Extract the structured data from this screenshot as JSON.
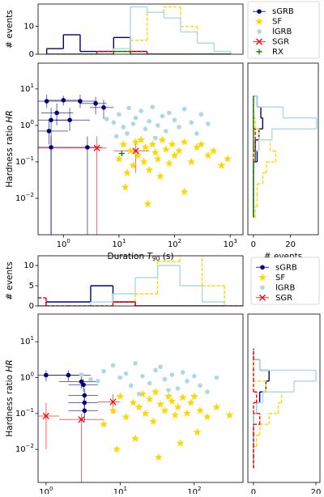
{
  "chart_data": [
    {
      "type": "histogram",
      "orientation": "vertical",
      "xscale": "log",
      "xlim": [
        0.35,
        1700
      ],
      "ylim": [
        0,
        18
      ],
      "yticks": [
        0,
        10
      ],
      "ylabel": "# events",
      "bins": [
        0.5,
        1,
        2,
        4,
        8,
        16,
        32,
        64,
        128,
        256,
        512,
        1024
      ],
      "series": [
        {
          "color": "#000080",
          "values": [
            2,
            7,
            1,
            1,
            6,
            1,
            0,
            0,
            0,
            0,
            0
          ]
        },
        {
          "color": "#ffd700",
          "linestyle": "dashed",
          "values": [
            0,
            0,
            0,
            0,
            1,
            5,
            15,
            17,
            10,
            4,
            1
          ]
        },
        {
          "color": "#add8e6",
          "values": [
            0,
            0,
            0,
            0,
            2,
            17,
            15,
            13,
            8,
            4,
            1
          ]
        },
        {
          "color": "#ff0000",
          "linestyle": "dashed",
          "values": [
            0,
            0,
            0,
            1,
            1,
            1,
            0,
            0,
            0,
            0,
            0
          ]
        },
        {
          "color": "#008000",
          "values": [
            0,
            0,
            0,
            0,
            1,
            0,
            0,
            0,
            0,
            0,
            0
          ]
        }
      ]
    },
    {
      "type": "scatter",
      "xscale": "log",
      "yscale": "log",
      "xlim": [
        0.35,
        1700
      ],
      "ylim": [
        0.001,
        51
      ],
      "legend": true,
      "xlabel": [
        "Duration ",
        "T",
        "90",
        " (s)"
      ],
      "ylabel": [
        "Hardness ratio ",
        "HR"
      ],
      "xticks": [
        {
          "value": 1,
          "label": "10",
          "exp": "0"
        },
        {
          "value": 10,
          "label": "10",
          "exp": "1"
        },
        {
          "value": 100,
          "label": "10",
          "exp": "2"
        },
        {
          "value": 1000,
          "label": "10",
          "exp": "3"
        }
      ],
      "yticks": [
        {
          "value": 0.01,
          "label": "10",
          "exp": "−2"
        },
        {
          "value": 0.1,
          "label": "10",
          "exp": "−1"
        },
        {
          "value": 1,
          "label": "10",
          "exp": "0"
        },
        {
          "value": 10,
          "label": "10",
          "exp": "1"
        }
      ],
      "series": [
        {
          "name": "sGRB",
          "color": "#000080",
          "marker": "o",
          "x": [
            0.5,
            1,
            2,
            3.8,
            5.3,
            0.6,
            1.3,
            0.55,
            0.6,
            2.7,
            0.76
          ],
          "y": [
            4.6,
            4.9,
            4.6,
            4,
            3.1,
            1.4,
            1.4,
            0.7,
            0.25,
            0.25,
            2.2
          ],
          "x_lo": [
            0.35,
            0.5,
            1,
            2,
            3,
            0.35,
            0.7,
            0.35,
            0.35,
            1.5,
            0.4
          ],
          "x_hi": [
            1,
            2,
            4,
            6,
            8,
            1.2,
            3,
            1.2,
            1.5,
            5,
            1.5
          ],
          "y_lo": [
            3,
            3.5,
            3,
            2,
            1.5,
            0.001,
            0.7,
            0.3,
            0.001,
            0.001,
            1
          ],
          "y_hi": [
            7,
            6.5,
            7,
            6,
            5,
            3,
            3,
            1.5,
            0.5,
            0.5,
            4
          ]
        },
        {
          "name": "SF",
          "color": "#ffd700",
          "marker": "*",
          "x": [
            10,
            12,
            14,
            16,
            18,
            20,
            22,
            25,
            28,
            30,
            35,
            40,
            45,
            50,
            60,
            70,
            80,
            90,
            100,
            120,
            150,
            200,
            250,
            300,
            400,
            500,
            700,
            900,
            13,
            33,
            55,
            150
          ],
          "y": [
            0.12,
            0.3,
            0.05,
            0.2,
            0.08,
            0.35,
            0.15,
            0.4,
            0.1,
            0.25,
            0.06,
            0.3,
            0.18,
            0.12,
            0.4,
            0.22,
            0.09,
            0.3,
            0.15,
            0.2,
            0.35,
            0.1,
            0.25,
            0.3,
            0.15,
            0.2,
            0.08,
            0.12,
            0.02,
            0.007,
            0.04,
            0.015
          ]
        },
        {
          "name": "lGRB",
          "color": "#add8e6",
          "marker": "o",
          "x": [
            6,
            8,
            10,
            12,
            15,
            18,
            20,
            25,
            30,
            35,
            40,
            50,
            60,
            70,
            80,
            100,
            120,
            150,
            200,
            250,
            300,
            400,
            9,
            14,
            45
          ],
          "y": [
            1.5,
            1.2,
            2,
            0.9,
            3,
            1.1,
            1.6,
            2.5,
            0.8,
            1.3,
            3.2,
            1,
            1.8,
            0.7,
            2.2,
            1.4,
            0.9,
            2.8,
            1.2,
            0.6,
            2,
            1.1,
            0.5,
            0.6,
            0.45
          ]
        },
        {
          "name": "SGR",
          "color": "#ff0000",
          "marker": "x",
          "x": [
            4,
            20
          ],
          "y": [
            0.24,
            0.2
          ],
          "x_lo": [
            0.35,
            8
          ],
          "x_hi": [
            6,
            35
          ],
          "y_lo": [
            0.001,
            0.05
          ],
          "y_hi": [
            0.5,
            0.4
          ]
        },
        {
          "name": "RX",
          "color": "#008000",
          "marker": "+",
          "x": [
            11.2
          ],
          "y": [
            0.17
          ]
        }
      ]
    },
    {
      "type": "histogram",
      "orientation": "horizontal",
      "yscale": "log",
      "ylim": [
        0.001,
        51
      ],
      "xlim": [
        -3,
        35
      ],
      "xticks": [
        0,
        20
      ],
      "xlabel": "# events",
      "bins": [
        0.003,
        0.006,
        0.012,
        0.025,
        0.05,
        0.1,
        0.2,
        0.4,
        0.8,
        1.6,
        3.2,
        6.4
      ],
      "series": [
        {
          "color": "#000080",
          "values": [
            0,
            0,
            0,
            0,
            0,
            2,
            1,
            3,
            5,
            4,
            2
          ]
        },
        {
          "color": "#ffd700",
          "linestyle": "dashed",
          "values": [
            1,
            2,
            2,
            5,
            7,
            12,
            9,
            3,
            1,
            0,
            0
          ]
        },
        {
          "color": "#add8e6",
          "values": [
            0,
            0,
            0,
            0,
            0,
            0,
            3,
            10,
            34,
            16,
            2
          ]
        },
        {
          "color": "#ff0000",
          "linestyle": "dashed",
          "values": [
            0,
            0,
            0,
            0,
            0,
            0,
            1,
            1,
            0,
            0,
            0
          ]
        },
        {
          "color": "#008000",
          "values": [
            0,
            0,
            0,
            0,
            0,
            1,
            0,
            0,
            0,
            0,
            0
          ]
        }
      ]
    },
    {
      "type": "histogram",
      "orientation": "vertical",
      "xscale": "log",
      "xlim": [
        0.78,
        455
      ],
      "ylim": [
        0,
        12.4
      ],
      "yticks": [
        0,
        5,
        10
      ],
      "ylabel": "# events",
      "bins": [
        0.5,
        1,
        2,
        4,
        8,
        16,
        32,
        64,
        128,
        256,
        512
      ],
      "series": [
        {
          "color": "#000080",
          "values": [
            0,
            1,
            1,
            5,
            1,
            0,
            0,
            0,
            0,
            0
          ]
        },
        {
          "color": "#ffd700",
          "linestyle": "dashed",
          "values": [
            0,
            0,
            0,
            0,
            1,
            3,
            11,
            13,
            5,
            0
          ]
        },
        {
          "color": "#add8e6",
          "values": [
            0,
            0,
            0,
            1,
            3,
            7,
            10,
            5,
            1,
            0
          ]
        },
        {
          "color": "#ff0000",
          "linestyle": "dashed",
          "values": [
            2,
            0,
            0,
            0,
            1,
            0,
            0,
            0,
            0,
            0
          ]
        }
      ]
    },
    {
      "type": "scatter",
      "xscale": "log",
      "yscale": "log",
      "xlim": [
        0.78,
        455
      ],
      "ylim": [
        0.0012,
        59
      ],
      "legend": true,
      "xlabel": [
        "Duration ",
        "T",
        "90",
        " (s)"
      ],
      "ylabel": [
        "Hardness ratio ",
        "HR"
      ],
      "xticks": [
        {
          "value": 1,
          "label": "10",
          "exp": "0"
        },
        {
          "value": 10,
          "label": "10",
          "exp": "1"
        },
        {
          "value": 100,
          "label": "10",
          "exp": "2"
        }
      ],
      "yticks": [
        {
          "value": 0.01,
          "label": "10",
          "exp": "−2"
        },
        {
          "value": 0.1,
          "label": "10",
          "exp": "−1"
        },
        {
          "value": 1,
          "label": "10",
          "exp": "0"
        },
        {
          "value": 10,
          "label": "10",
          "exp": "1"
        }
      ],
      "series": [
        {
          "name": "sGRB",
          "color": "#000080",
          "marker": "o",
          "x": [
            1,
            2,
            3.2,
            3.3,
            3.3,
            3.3,
            3
          ],
          "y": [
            1.17,
            1.17,
            0.63,
            0.32,
            0.2,
            0.12,
            0.77
          ],
          "x_lo": [
            0.78,
            1,
            2,
            2,
            2,
            2,
            1.5
          ],
          "x_hi": [
            3,
            4,
            5,
            5,
            5,
            5,
            5
          ],
          "y_lo": [
            0.8,
            0.8,
            0.4,
            0.2,
            0.1,
            0.06,
            0.5
          ],
          "y_hi": [
            1.6,
            1.6,
            0.9,
            0.5,
            0.35,
            0.2,
            1.1
          ]
        },
        {
          "name": "SF",
          "color": "#ffd700",
          "marker": "*",
          "x": [
            6,
            8,
            10,
            12,
            15,
            18,
            20,
            22,
            25,
            28,
            30,
            35,
            40,
            45,
            50,
            55,
            60,
            70,
            80,
            90,
            100,
            120,
            150,
            200,
            300,
            9,
            16,
            33,
            65,
            110
          ],
          "y": [
            0.05,
            0.12,
            0.3,
            0.08,
            0.2,
            0.15,
            0.35,
            0.1,
            0.25,
            0.06,
            0.4,
            0.18,
            0.12,
            0.3,
            0.22,
            0.09,
            0.15,
            0.28,
            0.1,
            0.2,
            0.3,
            0.12,
            0.08,
            0.15,
            0.09,
            0.01,
            0.02,
            0.006,
            0.015,
            0.03
          ]
        },
        {
          "name": "lGRB",
          "color": "#add8e6",
          "marker": "o",
          "x": [
            3,
            4,
            5,
            6,
            8,
            10,
            12,
            14,
            16,
            20,
            25,
            30,
            35,
            40,
            50,
            60,
            70,
            80,
            100,
            120,
            150,
            200,
            18,
            45
          ],
          "y": [
            1.2,
            0.9,
            0.8,
            1.5,
            2.2,
            1,
            1.3,
            0.6,
            2.5,
            1.1,
            0.7,
            1.6,
            2,
            0.9,
            1.2,
            0.5,
            1.4,
            0.8,
            1.1,
            0.6,
            0.4,
            1,
            0.35,
            0.45
          ]
        },
        {
          "name": "SGR",
          "color": "#ff0000",
          "marker": "x",
          "x": [
            1,
            3,
            8
          ],
          "y": [
            0.085,
            0.068,
            0.21
          ],
          "x_lo": [
            0.78,
            1.5,
            5
          ],
          "x_hi": [
            1.5,
            6,
            10
          ],
          "y_lo": [
            0.01,
            0.0012,
            0.1
          ],
          "y_hi": [
            0.2,
            0.1,
            0.35
          ]
        }
      ]
    },
    {
      "type": "histogram",
      "orientation": "horizontal",
      "yscale": "log",
      "ylim": [
        0.0012,
        59
      ],
      "xlim": [
        -1.8,
        21.3
      ],
      "xticks": [
        0,
        20
      ],
      "xlabel": "# events",
      "bins": [
        0.003,
        0.006,
        0.012,
        0.025,
        0.05,
        0.1,
        0.2,
        0.4,
        0.8,
        1.6,
        3.2,
        6.4
      ],
      "series": [
        {
          "color": "#000080",
          "values": [
            0,
            0,
            0,
            0,
            0,
            1,
            2,
            4,
            5,
            2,
            0
          ]
        },
        {
          "color": "#ffd700",
          "linestyle": "dashed",
          "values": [
            0,
            0,
            1,
            2,
            5,
            8,
            9,
            4,
            0,
            0,
            0
          ]
        },
        {
          "color": "#add8e6",
          "values": [
            0,
            0,
            0,
            0,
            0,
            1,
            3,
            13,
            20,
            2,
            0
          ]
        },
        {
          "color": "#ff0000",
          "linestyle": "dashed",
          "values": [
            0,
            0,
            0,
            0,
            2,
            0,
            1,
            0,
            0,
            0,
            0
          ]
        }
      ]
    }
  ]
}
